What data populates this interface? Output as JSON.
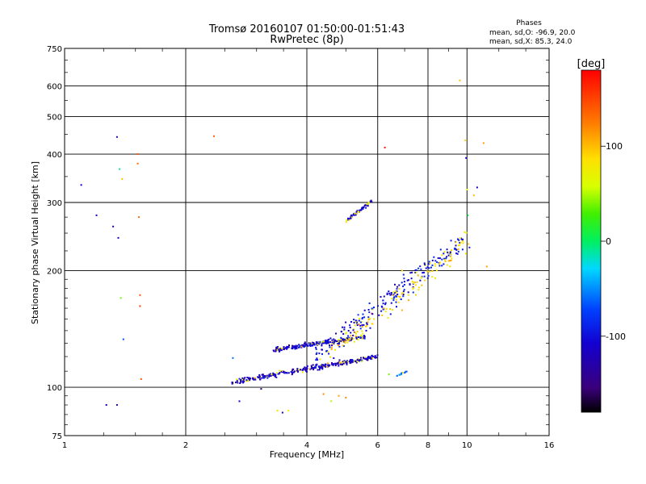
{
  "chart_data": {
    "type": "scatter",
    "title": "Tromsø 20160107 01:50:00-01:51:43",
    "subtitle": "RwPretec (8p)",
    "stats": {
      "heading": "Phases",
      "line_o": "mean, sd,O: -96.9, 20.0",
      "line_x": "mean, sd,X:  85.3, 24.0"
    },
    "xlabel": "Frequency [MHz]",
    "ylabel": "Stationary phase Virtual Height [km]",
    "x_scale": "log",
    "y_scale": "log",
    "xlim": [
      1,
      16
    ],
    "ylim": [
      75,
      750
    ],
    "x_ticks": [
      1,
      2,
      4,
      6,
      8,
      10,
      16
    ],
    "x_tick_labels": [
      "1",
      "2",
      "4",
      "6",
      "8",
      "10",
      "16"
    ],
    "y_ticks": [
      75,
      100,
      200,
      300,
      400,
      500,
      600,
      750
    ],
    "y_tick_labels": [
      "75",
      "100",
      "200",
      "300",
      "400",
      "500",
      "600",
      "750"
    ],
    "grid": true,
    "colorbar": {
      "label": "[deg]",
      "range": [
        -180,
        180
      ],
      "ticks": [
        100,
        0,
        -100
      ],
      "tick_labels": [
        "100",
        "0",
        "-100"
      ]
    },
    "points_isolated": [
      {
        "x": 1.1,
        "y": 333,
        "phase": -110
      },
      {
        "x": 1.2,
        "y": 278,
        "phase": -110
      },
      {
        "x": 1.27,
        "y": 90,
        "phase": -110
      },
      {
        "x": 1.32,
        "y": 260,
        "phase": -110
      },
      {
        "x": 1.35,
        "y": 90,
        "phase": -140
      },
      {
        "x": 1.35,
        "y": 443,
        "phase": -130
      },
      {
        "x": 1.36,
        "y": 243,
        "phase": -110
      },
      {
        "x": 1.37,
        "y": 366,
        "phase": -10
      },
      {
        "x": 1.38,
        "y": 170,
        "phase": 40
      },
      {
        "x": 1.39,
        "y": 345,
        "phase": 100
      },
      {
        "x": 1.4,
        "y": 133,
        "phase": -70
      },
      {
        "x": 1.52,
        "y": 378,
        "phase": 130
      },
      {
        "x": 1.52,
        "y": 400,
        "phase": 140
      },
      {
        "x": 1.53,
        "y": 275,
        "phase": 130
      },
      {
        "x": 1.54,
        "y": 173,
        "phase": 140
      },
      {
        "x": 1.54,
        "y": 162,
        "phase": 150
      },
      {
        "x": 1.55,
        "y": 105,
        "phase": 140
      },
      {
        "x": 2.35,
        "y": 445,
        "phase": 140
      },
      {
        "x": 2.62,
        "y": 119,
        "phase": -60
      },
      {
        "x": 2.72,
        "y": 92,
        "phase": -110
      },
      {
        "x": 3.08,
        "y": 99,
        "phase": -140
      },
      {
        "x": 3.38,
        "y": 87,
        "phase": 90
      },
      {
        "x": 3.48,
        "y": 86,
        "phase": -110
      },
      {
        "x": 3.6,
        "y": 87,
        "phase": 80
      },
      {
        "x": 4.4,
        "y": 96,
        "phase": 120
      },
      {
        "x": 4.6,
        "y": 92,
        "phase": 50
      },
      {
        "x": 4.8,
        "y": 95,
        "phase": 110
      },
      {
        "x": 5.0,
        "y": 94,
        "phase": 120
      },
      {
        "x": 5.8,
        "y": 155,
        "phase": 150
      },
      {
        "x": 6.25,
        "y": 416,
        "phase": 170
      },
      {
        "x": 6.4,
        "y": 108,
        "phase": 40
      },
      {
        "x": 6.9,
        "y": 200,
        "phase": 90
      },
      {
        "x": 9.6,
        "y": 620,
        "phase": 100
      },
      {
        "x": 9.9,
        "y": 434,
        "phase": 90
      },
      {
        "x": 9.95,
        "y": 391,
        "phase": -110
      },
      {
        "x": 10.0,
        "y": 324,
        "phase": 60
      },
      {
        "x": 10.05,
        "y": 278,
        "phase": 10
      },
      {
        "x": 10.4,
        "y": 313,
        "phase": 100
      },
      {
        "x": 10.6,
        "y": 328,
        "phase": -110
      },
      {
        "x": 11.0,
        "y": 427,
        "phase": 110
      },
      {
        "x": 11.2,
        "y": 205,
        "phase": 110
      }
    ],
    "point_clusters": [
      {
        "label": "O-trace lower",
        "x": [
          2.6,
          6.0
        ],
        "y": [
          103,
          120
        ],
        "spread": 0.022,
        "count": 300,
        "phase": -115
      },
      {
        "label": "O-trace upper",
        "x": [
          3.3,
          5.6
        ],
        "y": [
          125,
          135
        ],
        "spread": 0.02,
        "count": 220,
        "phase": -110
      },
      {
        "label": "patch 5 MHz",
        "x": [
          5.0,
          5.8
        ],
        "y": [
          268,
          302
        ],
        "spread": 0.015,
        "count": 60,
        "phase": -110
      },
      {
        "label": "F2 scatter",
        "x": [
          4.2,
          9.8
        ],
        "y": [
          120,
          240
        ],
        "spread": 0.09,
        "count": 230,
        "phase": -100
      },
      {
        "label": "X scatter",
        "x": [
          4.5,
          10.2
        ],
        "y": [
          120,
          240
        ],
        "spread": 0.1,
        "count": 110,
        "phase": 90
      },
      {
        "label": "small patch 7 MHz",
        "x": [
          6.7,
          7.1
        ],
        "y": [
          107,
          110
        ],
        "spread": 0.005,
        "count": 12,
        "phase": -60
      }
    ]
  }
}
